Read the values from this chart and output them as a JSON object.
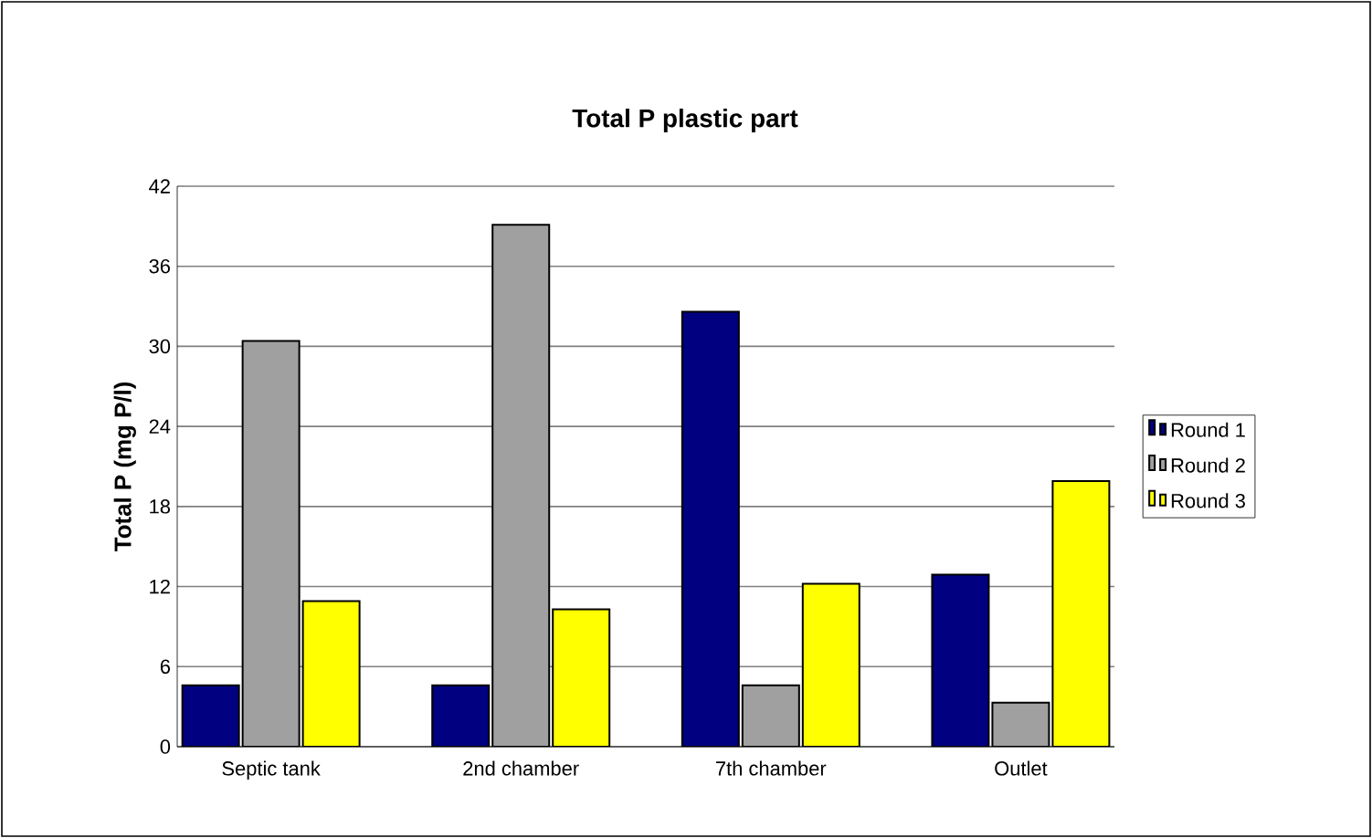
{
  "chart_data": {
    "type": "bar",
    "title": "Total P plastic part",
    "ylabel": "Total P  (mg P/l)",
    "categories": [
      "Septic tank",
      "2nd chamber",
      "7th chamber",
      "Outlet"
    ],
    "series": [
      {
        "name": "Round 1",
        "color": "#000080",
        "values": [
          4.6,
          4.6,
          32.6,
          12.9
        ]
      },
      {
        "name": "Round 2",
        "color": "#a0a0a0",
        "values": [
          30.4,
          39.1,
          4.6,
          3.3
        ]
      },
      {
        "name": "Round 3",
        "color": "#ffff00",
        "values": [
          10.9,
          10.3,
          12.2,
          19.9
        ]
      }
    ],
    "ylim": [
      0,
      42
    ],
    "yticks": [
      0,
      6,
      12,
      18,
      24,
      30,
      36,
      42
    ],
    "grid": "y",
    "legend": "right"
  }
}
